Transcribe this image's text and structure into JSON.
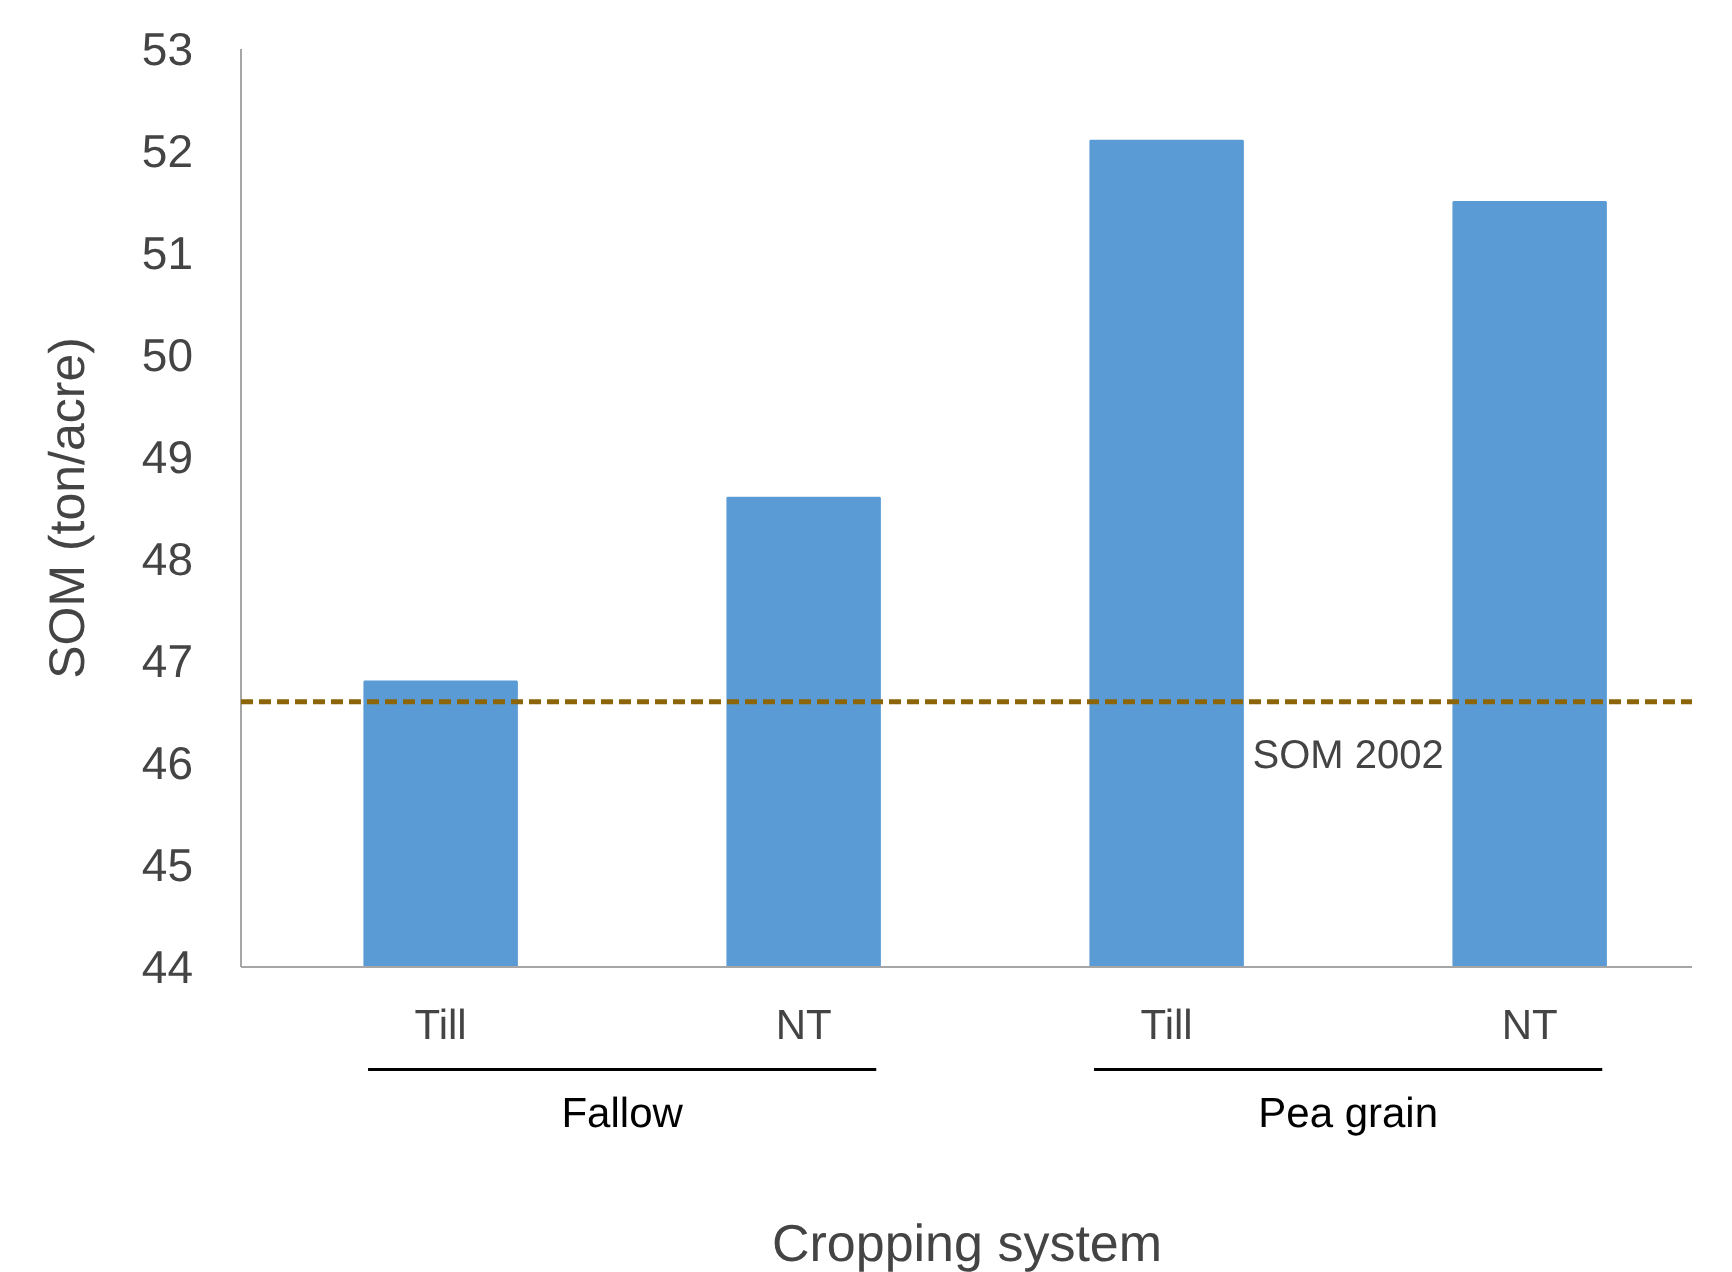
{
  "chart_data": {
    "type": "bar",
    "categories": [
      "Till",
      "NT",
      "Till",
      "NT"
    ],
    "values": [
      46.8,
      48.6,
      52.1,
      51.5
    ],
    "color": "#5b9bd5",
    "xlabel": "Cropping system",
    "ylabel": "SOM (ton/acre)",
    "ylim": [
      44,
      53
    ],
    "yticks": [
      44,
      45,
      46,
      47,
      48,
      49,
      50,
      51,
      52,
      53
    ],
    "ref_lines": [
      {
        "axis": "y",
        "value": 46.6,
        "label": "SOM 2002",
        "color": "#8b6508",
        "line_style": "dashed"
      }
    ],
    "annotations": [
      "Fallow",
      "Pea grain"
    ],
    "grid": false,
    "legend": false
  }
}
